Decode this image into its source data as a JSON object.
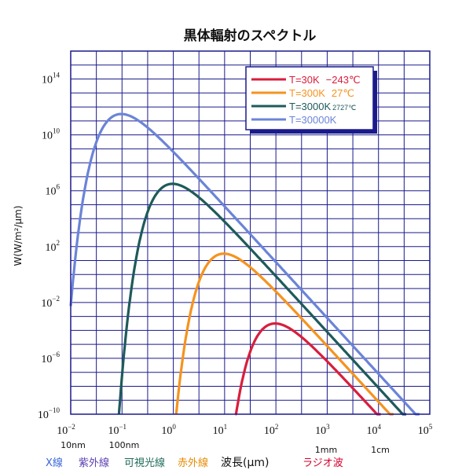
{
  "chart_data": {
    "type": "line",
    "title": "黒体輻射のスペクトル",
    "xlabel": "波長(μm)",
    "ylabel": "W(W/m²/μm)",
    "x_scale": "log",
    "y_scale": "log",
    "xlim": [
      0.01,
      100000
    ],
    "ylim": [
      1e-10,
      1e+16
    ],
    "grid": true,
    "legend_position": "top-right",
    "x_ticks": [
      {
        "base": "10",
        "exp": "−2"
      },
      {
        "base": "10",
        "exp": "−1"
      },
      {
        "base": "10",
        "exp": "0"
      },
      {
        "base": "10",
        "exp": "1"
      },
      {
        "base": "10",
        "exp": "2"
      },
      {
        "base": "10",
        "exp": "3"
      },
      {
        "base": "10",
        "exp": "4"
      },
      {
        "base": "10",
        "exp": "5"
      }
    ],
    "y_ticks": [
      {
        "base": "10",
        "exp": "14"
      },
      {
        "base": "10",
        "exp": "10"
      },
      {
        "base": "10",
        "exp": "6"
      },
      {
        "base": "10",
        "exp": "2"
      },
      {
        "base": "10",
        "exp": "−2"
      },
      {
        "base": "10",
        "exp": "−6"
      },
      {
        "base": "10",
        "exp": "−10"
      }
    ],
    "x_unit_notes": [
      "10nm",
      "100nm",
      "1mm",
      "1cm"
    ],
    "bands": [
      {
        "label": "X線",
        "color": "#3a66d8"
      },
      {
        "label": "紫外線",
        "color": "#5b3fb0"
      },
      {
        "label": "可視光線",
        "color": "#1f6b5a"
      },
      {
        "label": "赤外線",
        "color": "#e68a00"
      },
      {
        "label": "ラジオ波",
        "color": "#d6002a"
      }
    ],
    "series": [
      {
        "name": "T=30K",
        "note": "−243℃",
        "temperature": 30,
        "color": "#d81e3c"
      },
      {
        "name": "T=300K",
        "note": "27℃",
        "temperature": 300,
        "color": "#f5931f"
      },
      {
        "name": "T=3000K",
        "note": "2727℃",
        "temperature": 3000,
        "color": "#1f5a5a"
      },
      {
        "name": "T=30000K",
        "note": "",
        "temperature": 30000,
        "color": "#6b84d8"
      }
    ]
  }
}
